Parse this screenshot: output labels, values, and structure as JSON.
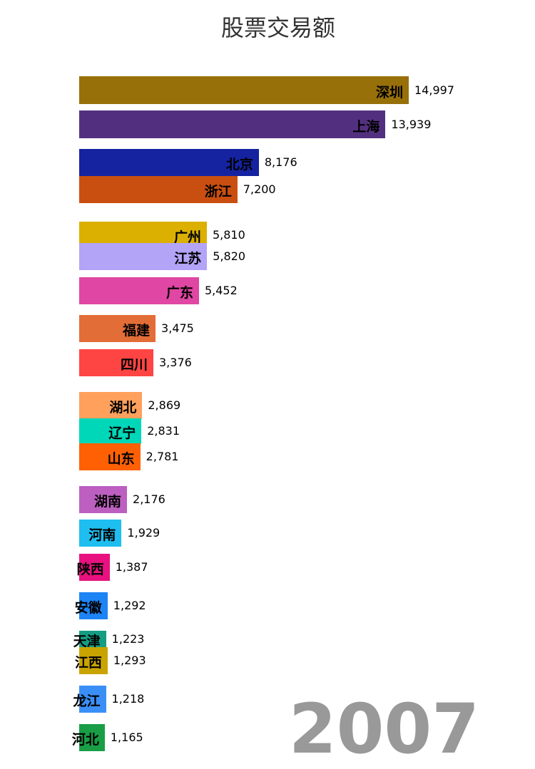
{
  "chart_data": {
    "type": "bar",
    "orientation": "horizontal",
    "title": "股票交易额",
    "year": "2007",
    "categories": [
      "深圳",
      "上海",
      "北京",
      "浙江",
      "广州",
      "江苏",
      "广东",
      "福建",
      "四川",
      "湖北",
      "辽宁",
      "山东",
      "湖南",
      "河南",
      "陕西",
      "安徽",
      "天津",
      "江西",
      "龙江",
      "河北"
    ],
    "values": [
      14997,
      13939,
      8176,
      7200,
      5810,
      5820,
      5452,
      3475,
      3376,
      2869,
      2831,
      2781,
      2176,
      1929,
      1387,
      1292,
      1223,
      1293,
      1218,
      1165
    ],
    "value_labels": [
      "14,997",
      "13,939",
      "8,176",
      "7,200",
      "5,810",
      "5,820",
      "5,452",
      "3,475",
      "3,376",
      "2,869",
      "2,831",
      "2,781",
      "2,176",
      "1,929",
      "1,387",
      "1,292",
      "1,223",
      "1,293",
      "1,218",
      "1,165"
    ],
    "colors": [
      "#98700a",
      "#53307f",
      "#1523a1",
      "#c94f10",
      "#dbb000",
      "#b3a4f7",
      "#e046a3",
      "#e36d37",
      "#ff4444",
      "#ffa05c",
      "#00d7b8",
      "#ff6003",
      "#bc5fc1",
      "#1ebef0",
      "#e8117f",
      "#1d84f5",
      "#159d83",
      "#c9a400",
      "#3a8ff6",
      "#199e46"
    ],
    "label_overlap_segments": [
      "",
      "",
      "",
      "",
      "",
      "",
      "",
      "",
      "",
      "",
      "",
      "",
      "",
      "",
      "陕",
      "安",
      "天",
      "江",
      "龙",
      "可"
    ]
  }
}
